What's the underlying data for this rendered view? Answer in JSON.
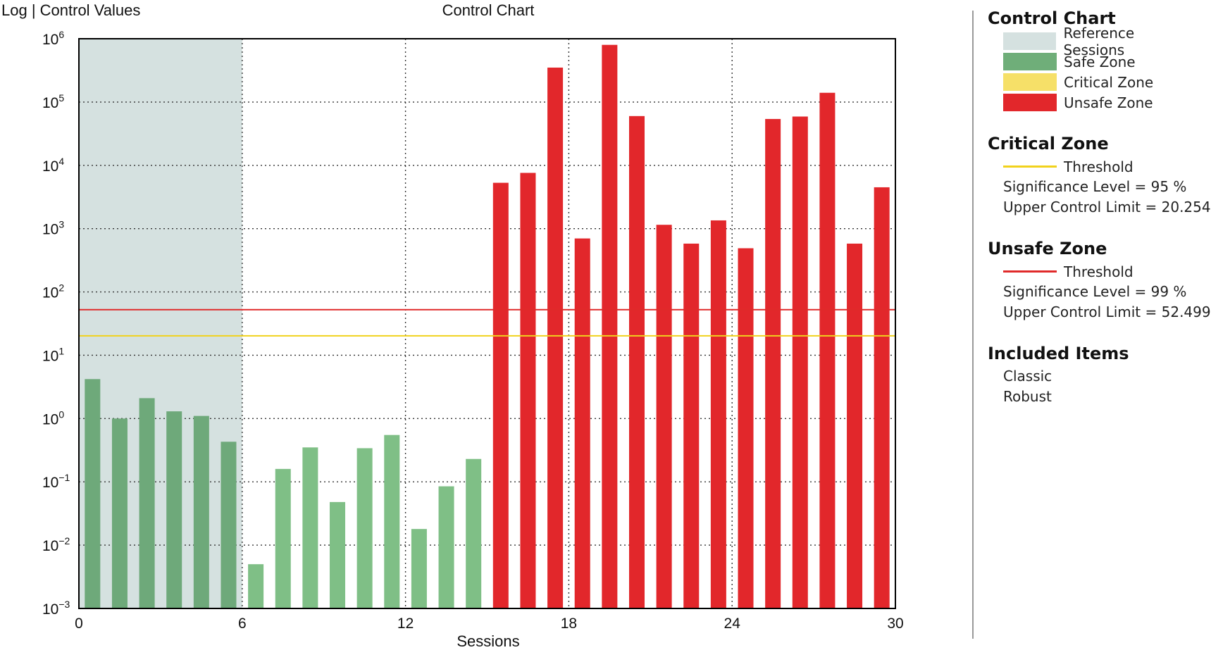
{
  "chart_data": {
    "type": "bar",
    "title": "Control Chart",
    "ylabel": "Log | Control Values",
    "xlabel": "Sessions",
    "y_scale": "log",
    "ylim": [
      0.001,
      1000000
    ],
    "xlim": [
      0,
      30
    ],
    "y_ticks": [
      {
        "base": "10",
        "exp": "−3"
      },
      {
        "base": "10",
        "exp": "−2"
      },
      {
        "base": "10",
        "exp": "−1"
      },
      {
        "base": "10",
        "exp": "0"
      },
      {
        "base": "10",
        "exp": "1"
      },
      {
        "base": "10",
        "exp": "2"
      },
      {
        "base": "10",
        "exp": "3"
      },
      {
        "base": "10",
        "exp": "4"
      },
      {
        "base": "10",
        "exp": "5"
      },
      {
        "base": "10",
        "exp": "6"
      }
    ],
    "x_ticks": [
      "0",
      "6",
      "12",
      "18",
      "24",
      "30"
    ],
    "grid": "dotted",
    "reference_sessions": [
      0,
      6
    ],
    "thresholds": {
      "critical": 20.254,
      "unsafe": 52.499
    },
    "sessions": [
      1,
      2,
      3,
      4,
      5,
      6,
      7,
      8,
      9,
      10,
      11,
      12,
      13,
      14,
      15,
      16,
      17,
      18,
      19,
      20,
      21,
      22,
      23,
      24,
      25,
      26,
      27,
      28,
      29,
      30
    ],
    "values": [
      4.2,
      1.0,
      2.1,
      1.3,
      1.1,
      0.43,
      0.005,
      0.16,
      0.35,
      0.048,
      0.34,
      0.55,
      0.018,
      0.085,
      0.23,
      5300,
      7600,
      350000,
      700,
      800000,
      60000,
      1150,
      580,
      1350,
      490,
      54000,
      59000,
      140000,
      580,
      4500
    ],
    "zones": [
      "safe",
      "safe",
      "safe",
      "safe",
      "safe",
      "safe",
      "safe",
      "safe",
      "safe",
      "safe",
      "safe",
      "safe",
      "safe",
      "safe",
      "safe",
      "unsafe",
      "unsafe",
      "unsafe",
      "unsafe",
      "unsafe",
      "unsafe",
      "unsafe",
      "unsafe",
      "unsafe",
      "unsafe",
      "unsafe",
      "unsafe",
      "unsafe",
      "unsafe",
      "unsafe"
    ],
    "colors": {
      "reference": "#d5e1e0",
      "safe_reference": "#6ea97a",
      "safe": "#7fbf86",
      "critical": "#f3db4a",
      "unsafe": "#e2272b",
      "critical_line": "#f1d21c",
      "unsafe_line": "#e02a2a"
    }
  },
  "legend": {
    "title": "Control Chart",
    "items": [
      {
        "label": "Reference Sessions",
        "color": "#d5e1e0"
      },
      {
        "label": "Safe Zone",
        "color": "#6fae79"
      },
      {
        "label": "Critical Zone",
        "color": "#f6e068"
      },
      {
        "label": "Unsafe Zone",
        "color": "#e2272b"
      }
    ]
  },
  "critical_zone": {
    "title": "Critical Zone",
    "threshold_label": "Threshold",
    "significance": "Significance Level = 95 %",
    "ucl": "Upper Control Limit = 20.254",
    "color": "#f1d21c"
  },
  "unsafe_zone": {
    "title": "Unsafe Zone",
    "threshold_label": "Threshold",
    "significance": "Significance Level = 99 %",
    "ucl": "Upper Control Limit = 52.499",
    "color": "#e02a2a"
  },
  "included_items": {
    "title": "Included Items",
    "items": [
      "Classic",
      "Robust"
    ]
  }
}
